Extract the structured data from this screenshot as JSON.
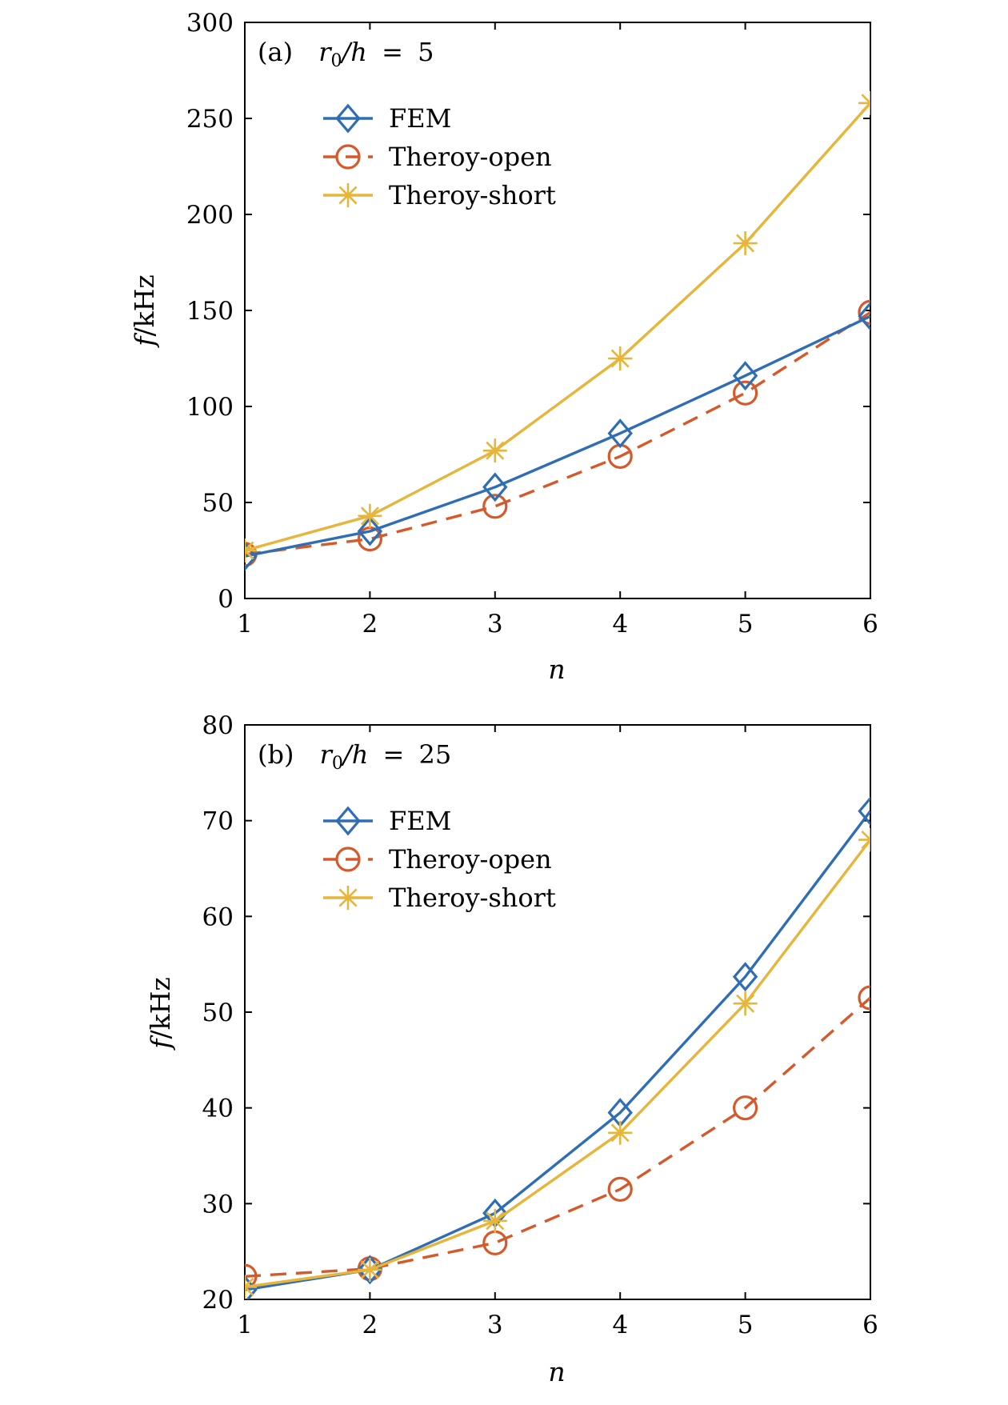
{
  "colors": {
    "fem": "#2f6db5",
    "open": "#d5592a",
    "short": "#e6b53a"
  },
  "chart_data": [
    {
      "type": "line",
      "panel": "(a)",
      "annotation": {
        "ratio_label": "r0/h = 5",
        "ratio_value": "5"
      },
      "xlabel": "n",
      "ylabel": "f/kHz",
      "ylabel_symbol": "f",
      "ylabel_unit": "/kHz",
      "xlim": [
        1,
        6
      ],
      "ylim": [
        0,
        300
      ],
      "xticks": [
        1,
        2,
        3,
        4,
        5,
        6
      ],
      "yticks": [
        0,
        50,
        100,
        150,
        200,
        250,
        300
      ],
      "legend_position": "top-left",
      "series": [
        {
          "name": "FEM",
          "marker": "diamond",
          "style": "solid",
          "x": [
            1,
            2,
            3,
            4,
            5,
            6
          ],
          "values": [
            22,
            35,
            58,
            86,
            116,
            147
          ]
        },
        {
          "name": "Theroy-open",
          "marker": "circle",
          "style": "dashed",
          "x": [
            1,
            2,
            3,
            4,
            5,
            6
          ],
          "values": [
            23,
            31,
            48,
            74,
            107,
            149
          ]
        },
        {
          "name": "Theroy-short",
          "marker": "asterisk",
          "style": "solid",
          "x": [
            1,
            2,
            3,
            4,
            5,
            6
          ],
          "values": [
            25,
            43,
            77,
            125,
            185,
            258
          ]
        }
      ]
    },
    {
      "type": "line",
      "panel": "(b)",
      "annotation": {
        "ratio_label": "r0/h = 25",
        "ratio_value": "25"
      },
      "xlabel": "n",
      "ylabel": "f/kHz",
      "ylabel_symbol": "f",
      "ylabel_unit": "/kHz",
      "xlim": [
        1,
        6
      ],
      "ylim": [
        20,
        80
      ],
      "xticks": [
        1,
        2,
        3,
        4,
        5,
        6
      ],
      "yticks": [
        20,
        30,
        40,
        50,
        60,
        70,
        80
      ],
      "legend_position": "top-left",
      "series": [
        {
          "name": "FEM",
          "marker": "diamond",
          "style": "solid",
          "x": [
            1,
            2,
            3,
            4,
            5,
            6
          ],
          "values": [
            21.0,
            23.1,
            29.0,
            39.5,
            53.7,
            71.0
          ]
        },
        {
          "name": "Theroy-open",
          "marker": "circle",
          "style": "dashed",
          "x": [
            1,
            2,
            3,
            4,
            5,
            6
          ],
          "values": [
            22.4,
            23.2,
            25.9,
            31.5,
            40.0,
            51.5
          ]
        },
        {
          "name": "Theroy-short",
          "marker": "asterisk",
          "style": "solid",
          "x": [
            1,
            2,
            3,
            4,
            5,
            6
          ],
          "values": [
            21.3,
            23.1,
            28.2,
            37.4,
            50.9,
            68.0
          ]
        }
      ]
    }
  ]
}
